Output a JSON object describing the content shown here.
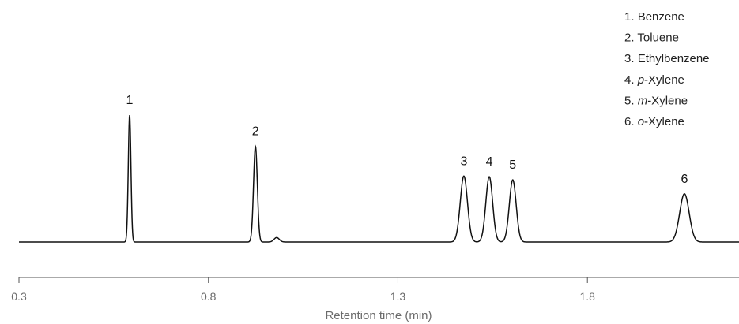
{
  "chart_data": {
    "type": "line",
    "xlabel": "Retention time (min)",
    "ylabel": "",
    "xlim": [
      0.3,
      2.2
    ],
    "x_ticks": [
      "0.3",
      "0.8",
      "1.3",
      "1.8"
    ],
    "x_tick_values": [
      0.3,
      0.8,
      1.3,
      1.8
    ],
    "grid": false,
    "legend_position": "top-right",
    "baseline": 0,
    "peaks": [
      {
        "label": "1",
        "name": "Benzene",
        "retention_time": 0.592,
        "height": 1.0,
        "width": 0.0035
      },
      {
        "label": "2",
        "name": "Toluene",
        "retention_time": 0.924,
        "height": 0.755,
        "width": 0.005
      },
      {
        "label": "3",
        "name": "Ethylbenzene",
        "retention_time": 1.474,
        "height": 0.52,
        "width": 0.0095
      },
      {
        "label": "4",
        "name": "p-Xylene",
        "retention_time": 1.541,
        "height": 0.515,
        "width": 0.009
      },
      {
        "label": "5",
        "name": "m-Xylene",
        "retention_time": 1.603,
        "height": 0.49,
        "width": 0.009
      },
      {
        "label": "6",
        "name": "o-Xylene",
        "retention_time": 2.056,
        "height": 0.38,
        "width": 0.0125
      }
    ],
    "minor_peaks": [
      {
        "retention_time": 0.98,
        "height": 0.035,
        "width": 0.007
      }
    ],
    "legend": [
      {
        "number": "1.",
        "prefix": "",
        "italic": "",
        "suffix": "Benzene"
      },
      {
        "number": "2.",
        "prefix": "",
        "italic": "",
        "suffix": "Toluene"
      },
      {
        "number": "3.",
        "prefix": "",
        "italic": "",
        "suffix": "Ethylbenzene"
      },
      {
        "number": "4.",
        "prefix": "",
        "italic": "p",
        "suffix": "-Xylene"
      },
      {
        "number": "5.",
        "prefix": "",
        "italic": "m",
        "suffix": "-Xylene"
      },
      {
        "number": "6.",
        "prefix": "",
        "italic": "o",
        "suffix": "-Xylene"
      }
    ],
    "colors": {
      "trace": "#111111",
      "axis": "#555555",
      "text": "#6b6b6b"
    }
  }
}
